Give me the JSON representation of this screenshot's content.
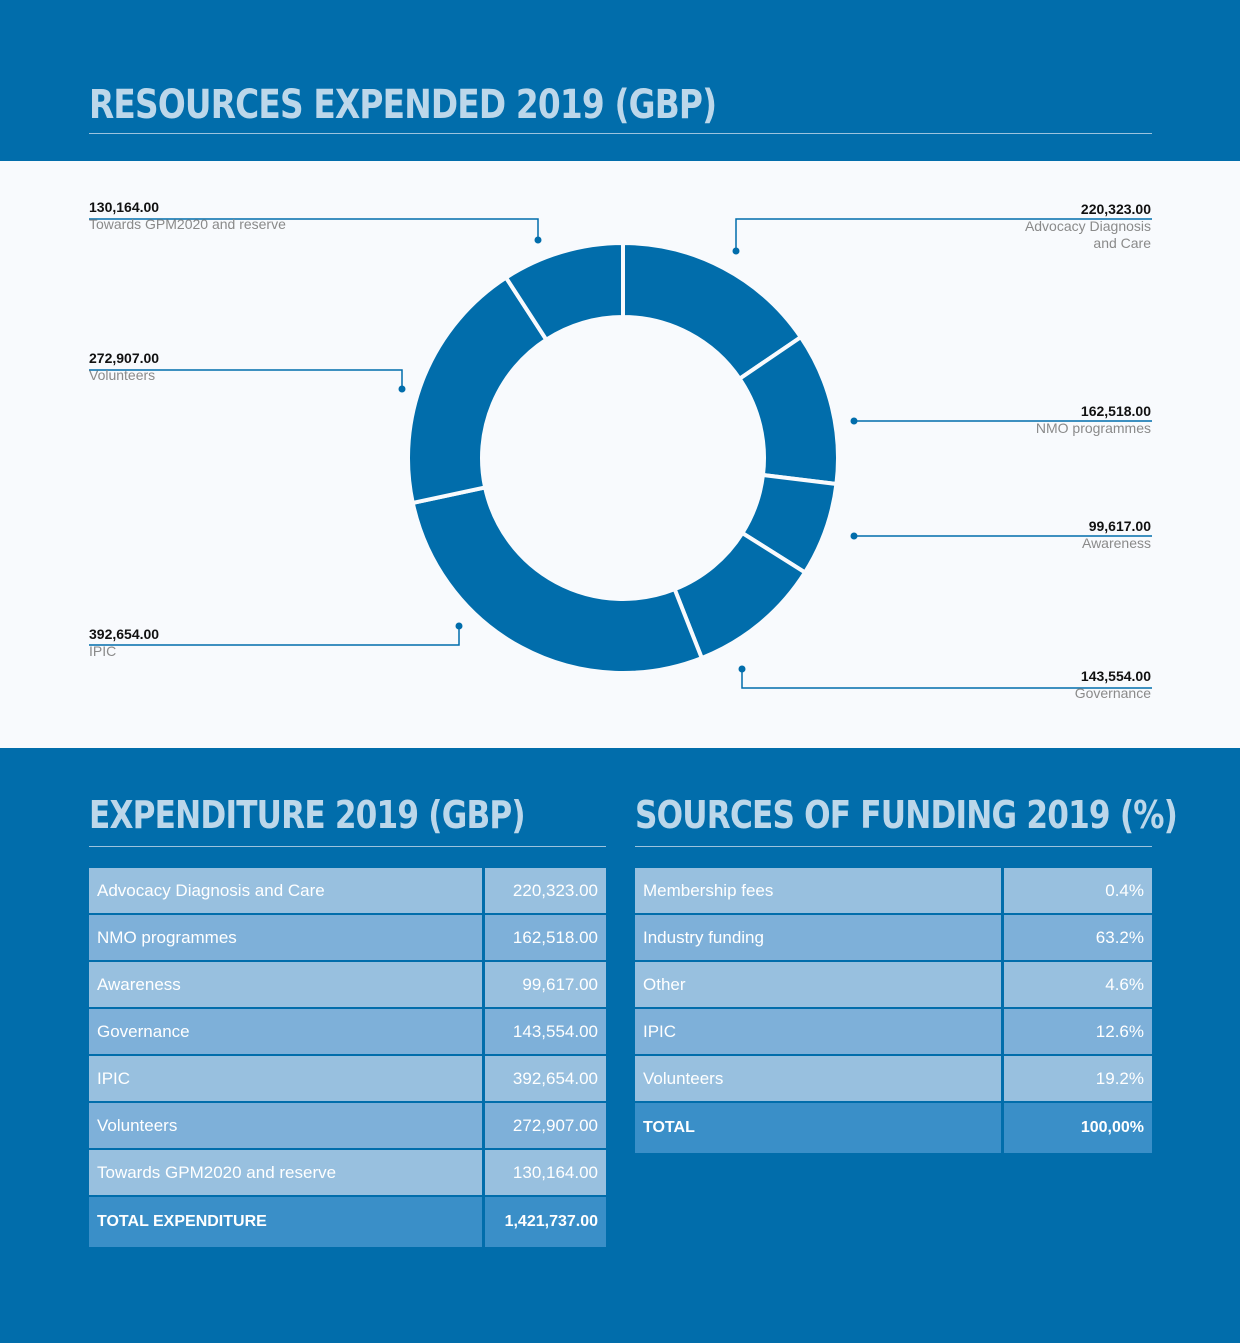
{
  "header": {
    "title": "RESOURCES EXPENDED 2019 (GBP)"
  },
  "chart_data": {
    "type": "pie",
    "title": "RESOURCES EXPENDED 2019 (GBP)",
    "categories": [
      "Advocacy Diagnosis and Care",
      "NMO programmes",
      "Awareness",
      "Governance",
      "IPIC",
      "Volunteers",
      "Towards GPM2020 and reserve"
    ],
    "values": [
      220323.0,
      162518.0,
      99617.0,
      143554.0,
      392654.0,
      272907.0,
      130164.0
    ],
    "value_labels": [
      "220,323.00",
      "162,518.00",
      "99,617.00",
      "143,554.00",
      "392,654.00",
      "272,907.00",
      "130,164.00"
    ],
    "color": "#016dab"
  },
  "expenditure": {
    "title": "EXPENDITURE 2019 (GBP)",
    "rows": [
      {
        "label": "Advocacy Diagnosis and Care",
        "value": "220,323.00"
      },
      {
        "label": "NMO programmes",
        "value": "162,518.00"
      },
      {
        "label": "Awareness",
        "value": "99,617.00"
      },
      {
        "label": "Governance",
        "value": "143,554.00"
      },
      {
        "label": "IPIC",
        "value": "392,654.00"
      },
      {
        "label": "Volunteers",
        "value": "272,907.00"
      },
      {
        "label": "Towards GPM2020 and reserve",
        "value": "130,164.00"
      }
    ],
    "total_label": "TOTAL EXPENDITURE",
    "total_value": "1,421,737.00"
  },
  "funding": {
    "title": "SOURCES OF FUNDING 2019 (%)",
    "rows": [
      {
        "label": "Membership fees",
        "value": "0.4%"
      },
      {
        "label": "Industry funding",
        "value": "63.2%"
      },
      {
        "label": "Other",
        "value": "4.6%"
      },
      {
        "label": "IPIC",
        "value": "12.6%"
      },
      {
        "label": "Volunteers",
        "value": "19.2%"
      }
    ],
    "total_label": "TOTAL",
    "total_value": "100,00%"
  }
}
